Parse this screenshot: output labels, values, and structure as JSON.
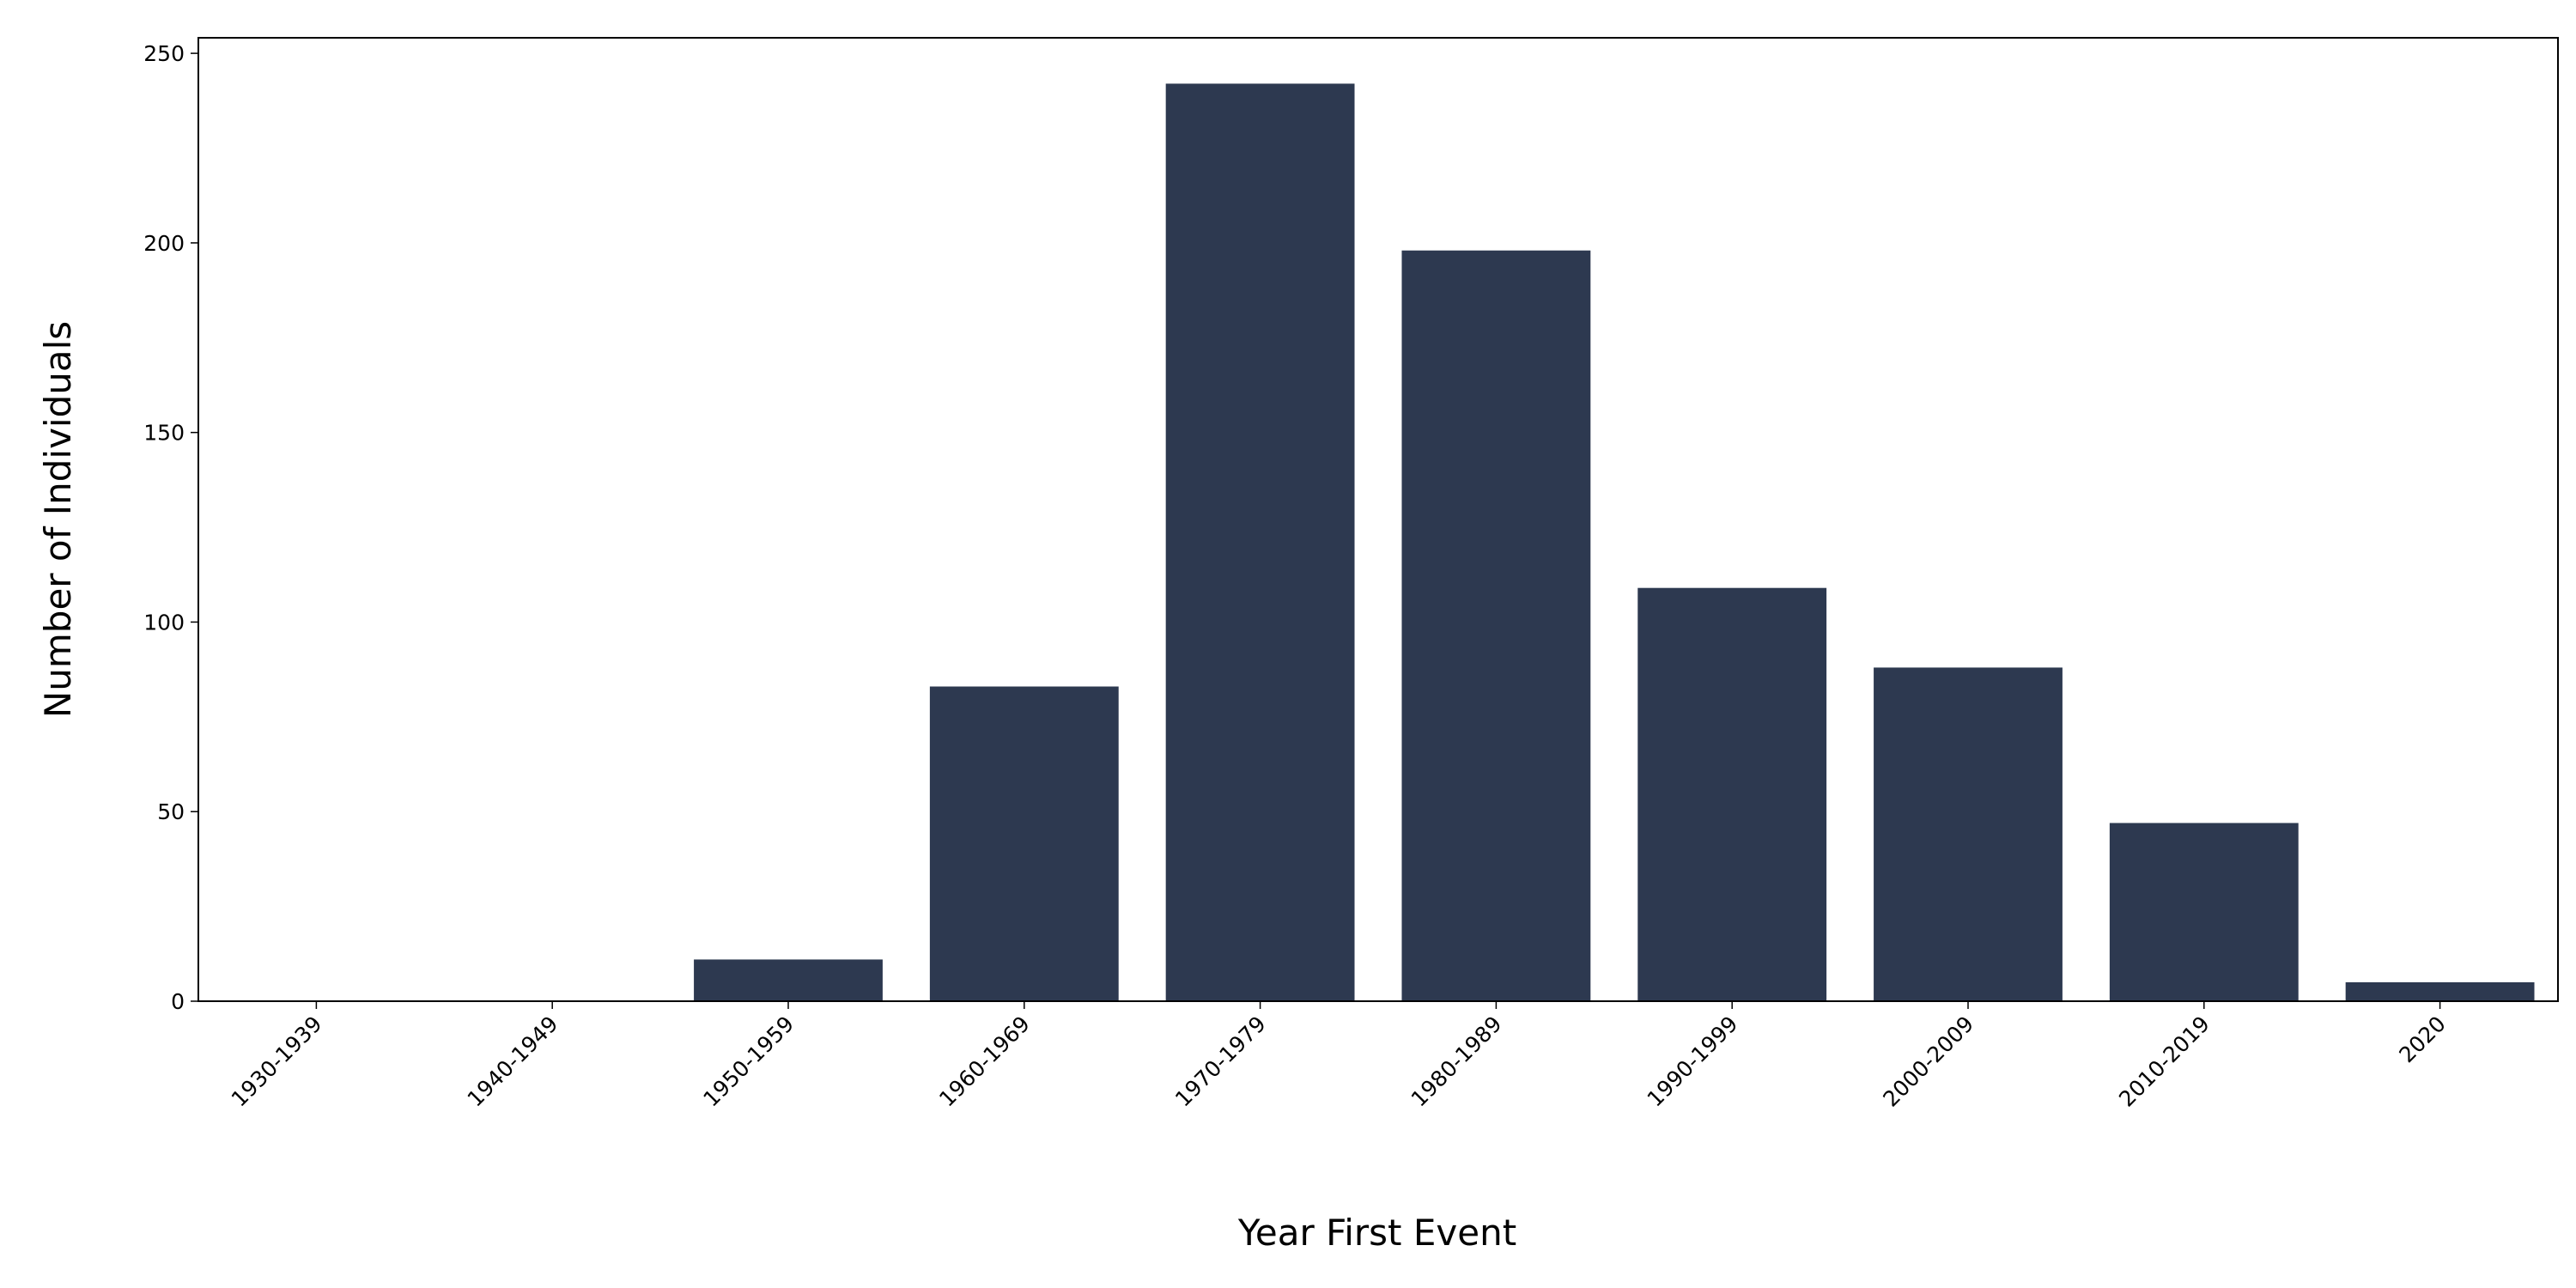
{
  "chart_data": {
    "type": "bar",
    "x_label": "Year First Event",
    "y_label": "Number of Individuals",
    "categories": [
      "1930-1939",
      "1940-1949",
      "1950-1959",
      "1960-1969",
      "1970-1979",
      "1980-1989",
      "1990-1999",
      "2000-2009",
      "2010-2019",
      "2020"
    ],
    "values": [
      0,
      0,
      11,
      83,
      242,
      198,
      109,
      88,
      47,
      5
    ],
    "color": "#2d3950",
    "ylim": [
      0,
      254.1
    ],
    "yticks": [
      0,
      50,
      100,
      150,
      200,
      250
    ],
    "grid": false
  }
}
